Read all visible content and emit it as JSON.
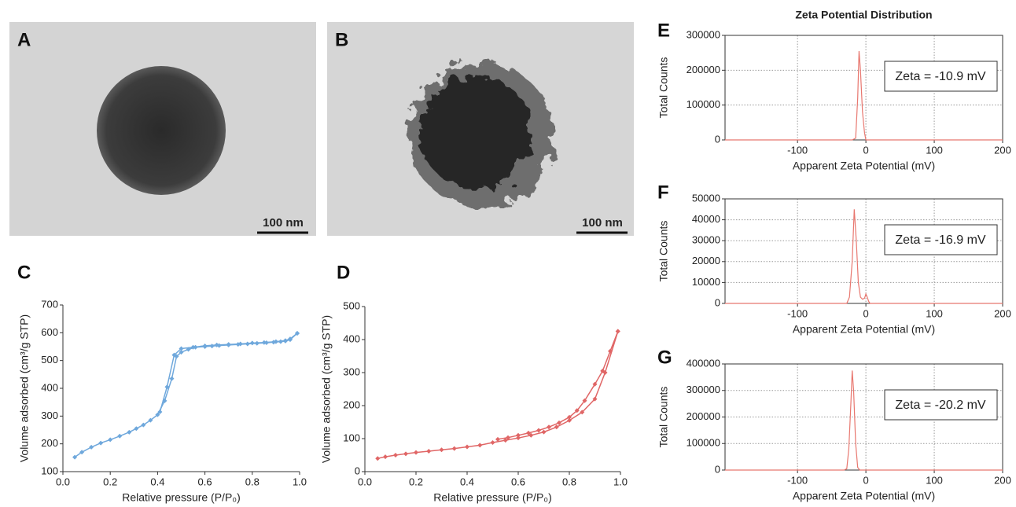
{
  "images": [
    {
      "label": "A",
      "scale_bar": "100 nm"
    },
    {
      "label": "B",
      "scale_bar": "100 nm"
    }
  ],
  "chart_data": [
    {
      "type": "line",
      "panel_label": "C",
      "xlabel": "Relative pressure (P/P₀)",
      "ylabel": "Volume adsorbed (cm³/g STP)",
      "xlim": [
        0,
        1
      ],
      "xticks": [
        {
          "value": 0,
          "label": "0.0"
        },
        0.2,
        0.4,
        0.6,
        0.8,
        {
          "value": 1,
          "label": "1.0"
        }
      ],
      "ylim": [
        100,
        700
      ],
      "yticks": [
        100,
        200,
        300,
        400,
        500,
        600,
        700
      ],
      "grid": false,
      "frame": false,
      "markers": true,
      "series": [
        {
          "color": "#6fa8dc",
          "x": [
            0.05,
            0.08,
            0.12,
            0.16,
            0.2,
            0.24,
            0.28,
            0.31,
            0.34,
            0.37,
            0.4,
            0.43,
            0.46,
            0.48,
            0.5,
            0.53,
            0.56,
            0.6,
            0.63,
            0.66,
            0.7,
            0.74,
            0.78,
            0.82,
            0.86,
            0.89,
            0.92,
            0.94,
            0.96,
            0.99
          ],
          "values": [
            152,
            170,
            188,
            203,
            215,
            228,
            242,
            255,
            268,
            285,
            305,
            355,
            435,
            515,
            530,
            540,
            548,
            550,
            552,
            554,
            556,
            558,
            560,
            562,
            564,
            566,
            568,
            570,
            575,
            598
          ]
        },
        {
          "color": "#6fa8dc",
          "x": [
            0.99,
            0.96,
            0.94,
            0.9,
            0.85,
            0.8,
            0.75,
            0.7,
            0.65,
            0.6,
            0.55,
            0.5,
            0.47,
            0.44,
            0.41
          ],
          "values": [
            598,
            578,
            572,
            568,
            565,
            563,
            560,
            558,
            556,
            553,
            548,
            543,
            520,
            405,
            315
          ]
        }
      ]
    },
    {
      "type": "line",
      "panel_label": "D",
      "xlabel": "Relative pressure (P/P₀)",
      "ylabel": "Volume adsorbed (cm³/g STP)",
      "xlim": [
        0,
        1
      ],
      "xticks": [
        {
          "value": 0,
          "label": "0.0"
        },
        0.2,
        0.4,
        0.6,
        0.8,
        {
          "value": 1,
          "label": "1.0"
        }
      ],
      "ylim": [
        0,
        500
      ],
      "yticks": [
        0,
        100,
        200,
        300,
        400,
        500
      ],
      "grid": false,
      "frame": false,
      "markers": true,
      "series": [
        {
          "color": "#e06666",
          "x": [
            0.05,
            0.08,
            0.12,
            0.16,
            0.2,
            0.25,
            0.3,
            0.35,
            0.4,
            0.45,
            0.5,
            0.55,
            0.6,
            0.65,
            0.7,
            0.75,
            0.8,
            0.85,
            0.9,
            0.94,
            0.99
          ],
          "values": [
            40,
            45,
            50,
            54,
            58,
            62,
            66,
            70,
            75,
            80,
            88,
            95,
            102,
            110,
            120,
            135,
            155,
            180,
            220,
            300,
            425
          ]
        },
        {
          "color": "#e06666",
          "x": [
            0.99,
            0.96,
            0.93,
            0.9,
            0.86,
            0.83,
            0.8,
            0.76,
            0.72,
            0.68,
            0.64,
            0.6,
            0.56,
            0.52
          ],
          "values": [
            425,
            365,
            305,
            265,
            215,
            185,
            165,
            148,
            135,
            125,
            117,
            110,
            103,
            98
          ]
        }
      ]
    },
    {
      "type": "line",
      "panel_label": "E",
      "title": "Zeta Potential Distribution",
      "xlabel": "Apparent Zeta Potential (mV)",
      "ylabel": "Total Counts",
      "annotation": "Zeta = -10.9 mV",
      "xlim": [
        -206,
        200
      ],
      "xticks": [
        -100,
        0,
        100,
        200
      ],
      "ylim": [
        0,
        300000
      ],
      "yticks": [
        0,
        100000,
        200000,
        300000
      ],
      "grid": true,
      "frame": true,
      "markers": false,
      "series": [
        {
          "color": "#e8776f",
          "x": [
            -206,
            -20,
            -15,
            -12,
            -10,
            -8,
            -5,
            -2,
            0,
            5,
            200
          ],
          "values": [
            0,
            0,
            5000,
            120000,
            255000,
            200000,
            80000,
            20000,
            0,
            0,
            0
          ]
        }
      ]
    },
    {
      "type": "line",
      "panel_label": "F",
      "xlabel": "Apparent Zeta Potential (mV)",
      "ylabel": "Total Counts",
      "annotation": "Zeta = -16.9 mV",
      "xlim": [
        -206,
        200
      ],
      "xticks": [
        -100,
        0,
        100,
        200
      ],
      "ylim": [
        0,
        50000
      ],
      "yticks": [
        0,
        10000,
        20000,
        30000,
        40000,
        50000
      ],
      "grid": true,
      "frame": true,
      "markers": false,
      "series": [
        {
          "color": "#e8776f",
          "x": [
            -206,
            -28,
            -24,
            -20,
            -17,
            -14,
            -11,
            -8,
            -5,
            -2,
            0,
            2,
            4,
            6,
            200
          ],
          "values": [
            0,
            0,
            3000,
            20000,
            45000,
            30000,
            10000,
            3000,
            2000,
            2500,
            4500,
            3000,
            1000,
            0,
            0
          ]
        }
      ]
    },
    {
      "type": "line",
      "panel_label": "G",
      "xlabel": "Apparent Zeta Potential (mV)",
      "ylabel": "Total Counts",
      "annotation": "Zeta = -20.2 mV",
      "xlim": [
        -206,
        200
      ],
      "xticks": [
        -100,
        0,
        100,
        200
      ],
      "ylim": [
        0,
        400000
      ],
      "yticks": [
        0,
        100000,
        200000,
        300000,
        400000
      ],
      "grid": true,
      "frame": true,
      "markers": false,
      "series": [
        {
          "color": "#e8776f",
          "x": [
            -206,
            -32,
            -28,
            -25,
            -22,
            -20,
            -18,
            -15,
            -12,
            -9,
            200
          ],
          "values": [
            0,
            0,
            5000,
            80000,
            250000,
            375000,
            300000,
            100000,
            10000,
            0,
            0
          ]
        }
      ]
    }
  ]
}
